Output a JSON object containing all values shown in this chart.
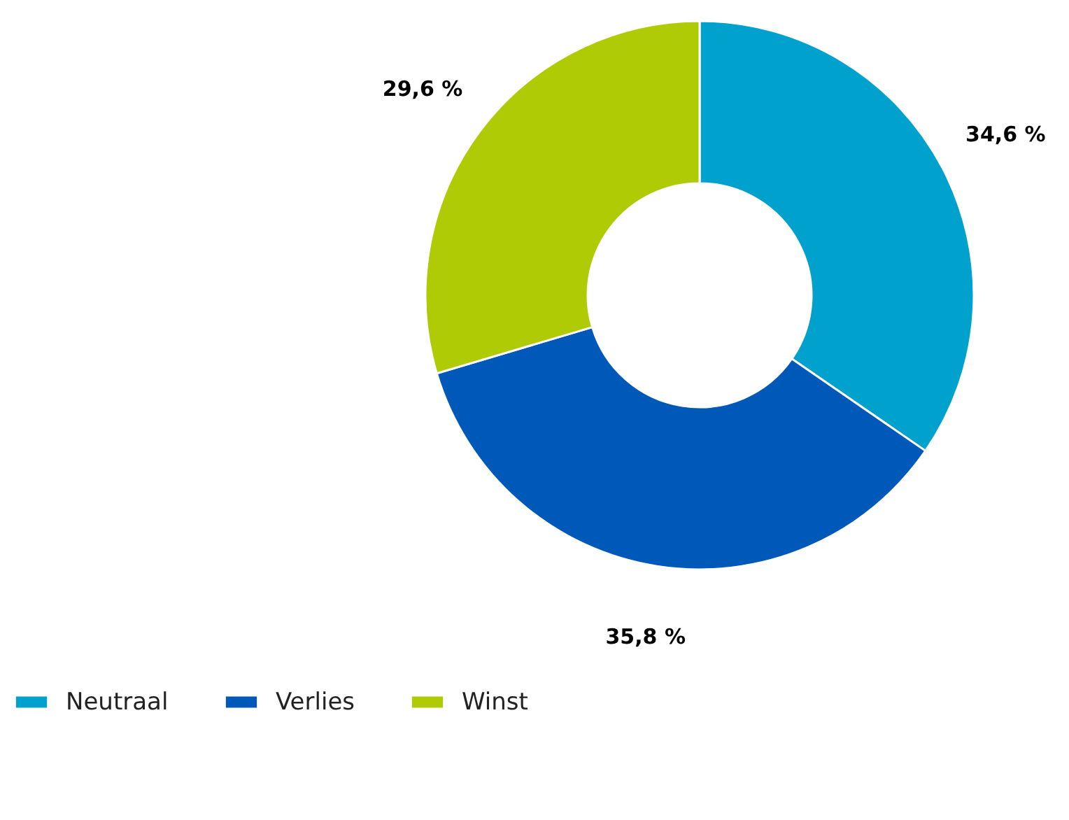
{
  "chart_data": {
    "type": "donut",
    "categories": [
      "Neutraal",
      "Verlies",
      "Winst"
    ],
    "values": [
      34.6,
      35.8,
      29.6
    ],
    "colors": [
      "#00a1cd",
      "#0058b8",
      "#afcb05"
    ],
    "value_labels": [
      "34,6 %",
      "35,8 %",
      "29,6 %"
    ],
    "legend": "bottom left"
  }
}
